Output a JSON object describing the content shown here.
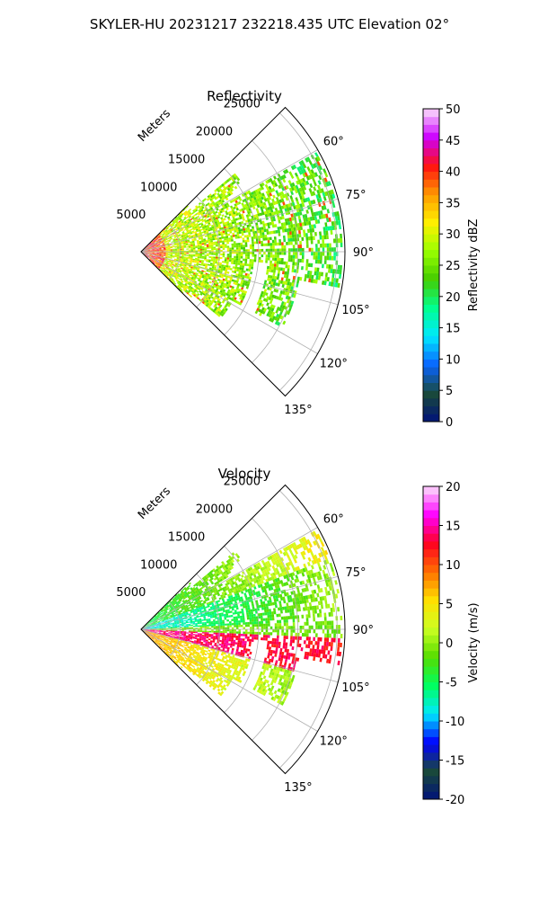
{
  "figure": {
    "suptitle": "SKYLER-HU  20231217  232218.435 UTC Elevation 02°"
  },
  "chart_data": [
    {
      "type": "heatmap",
      "title": "Reflectivity",
      "projection": "polar-sector",
      "radial_label": "Meters",
      "radial_ticks": [
        5000,
        10000,
        15000,
        20000,
        25000
      ],
      "radial_max": 26000,
      "angle_ticks": [
        60,
        75,
        90,
        105,
        120,
        135
      ],
      "angle_range_deg": [
        45,
        135
      ],
      "angle_convention": "clockwise from north",
      "grid": true,
      "colorbar": {
        "label": "Reflectivity dBZ",
        "range": [
          0,
          50
        ],
        "ticks": [
          0,
          5,
          10,
          15,
          20,
          25,
          30,
          35,
          40,
          45,
          50
        ],
        "location": "right"
      },
      "colors": {
        "low": "#00127a",
        "mid_low": "#00e0c0",
        "mid": "#66dd00",
        "mid_high": "#ffe000",
        "high": "#ff1010",
        "top": "#fbe0fb"
      }
    },
    {
      "type": "heatmap",
      "title": "Velocity",
      "projection": "polar-sector",
      "radial_label": "Meters",
      "radial_ticks": [
        5000,
        10000,
        15000,
        20000,
        25000
      ],
      "radial_max": 26000,
      "angle_ticks": [
        60,
        75,
        90,
        105,
        120,
        135
      ],
      "angle_range_deg": [
        45,
        135
      ],
      "angle_convention": "clockwise from north",
      "grid": true,
      "colorbar": {
        "label": "Velocity (m/s)",
        "range": [
          -20,
          20
        ],
        "ticks": [
          -20,
          -15,
          -10,
          -5,
          0,
          5,
          10,
          15,
          20
        ],
        "location": "right"
      },
      "colors": {
        "low": "#00127a",
        "mid_low": "#00e8e8",
        "mid": "#aaff22",
        "mid_high": "#ff8000",
        "high": "#ff00ff",
        "top": "#fbe0fb"
      }
    }
  ]
}
